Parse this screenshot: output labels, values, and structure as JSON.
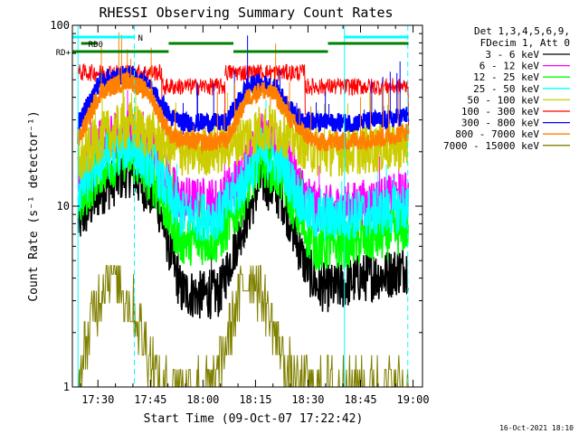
{
  "chart_data": {
    "type": "line",
    "title": "RHESSI Observing Summary Count Rates",
    "xlabel": "Start Time (09-Oct-07 17:22:42)",
    "ylabel": "Count Rate (s⁻¹ detector⁻¹)",
    "yscale": "log",
    "ylim": [
      1,
      100
    ],
    "xlim_minutes_from_start": [
      0,
      100
    ],
    "xticks": [
      {
        "label": "17:30",
        "minute": 7.3
      },
      {
        "label": "17:45",
        "minute": 22.3
      },
      {
        "label": "18:00",
        "minute": 37.3
      },
      {
        "label": "18:15",
        "minute": 52.3
      },
      {
        "label": "18:30",
        "minute": 67.3
      },
      {
        "label": "18:45",
        "minute": 82.3
      },
      {
        "label": "19:00",
        "minute": 97.3
      }
    ],
    "yticks": [
      {
        "label": "1",
        "value": 1
      },
      {
        "label": "10",
        "value": 10
      },
      {
        "label": "100",
        "value": 100
      }
    ],
    "legend": {
      "position": "right",
      "header": [
        "Det 1,3,4,5,6,9,",
        "FDecim 1, Att 0"
      ]
    },
    "series": [
      {
        "name": "3 - 6 keV",
        "color": "#000000",
        "mode": "solar",
        "points": [
          [
            1.6,
            8.0
          ],
          [
            8,
            12
          ],
          [
            16,
            15.5
          ],
          [
            24,
            11
          ],
          [
            28,
            5.6
          ],
          [
            31,
            3.4
          ],
          [
            36,
            3.2
          ],
          [
            42,
            3.3
          ],
          [
            47,
            6.4
          ],
          [
            54,
            14
          ],
          [
            60,
            11
          ],
          [
            66,
            5
          ],
          [
            70,
            3.6
          ],
          [
            75,
            3.5
          ],
          [
            82,
            4.0
          ],
          [
            90,
            4.2
          ],
          [
            96,
            4.6
          ]
        ]
      },
      {
        "name": "6 - 12 keV",
        "color": "#ff00ff",
        "mode": "solar",
        "points": [
          [
            1.6,
            14
          ],
          [
            8,
            22
          ],
          [
            16,
            26
          ],
          [
            24,
            19
          ],
          [
            28,
            13
          ],
          [
            31,
            10.8
          ],
          [
            36,
            10.5
          ],
          [
            42,
            10.6
          ],
          [
            47,
            14
          ],
          [
            54,
            24
          ],
          [
            60,
            20
          ],
          [
            66,
            12
          ],
          [
            70,
            9.5
          ],
          [
            75,
            9.6
          ],
          [
            82,
            10.2
          ],
          [
            90,
            10.8
          ],
          [
            96,
            11.5
          ]
        ]
      },
      {
        "name": "12 - 25 keV",
        "color": "#00ff00",
        "mode": "solar",
        "points": [
          [
            1.6,
            10
          ],
          [
            8,
            16
          ],
          [
            16,
            19
          ],
          [
            24,
            13
          ],
          [
            28,
            8.2
          ],
          [
            31,
            6.5
          ],
          [
            36,
            6.4
          ],
          [
            42,
            6.6
          ],
          [
            47,
            9.5
          ],
          [
            54,
            18
          ],
          [
            60,
            14
          ],
          [
            66,
            7.5
          ],
          [
            70,
            5.9
          ],
          [
            75,
            6.0
          ],
          [
            82,
            6.4
          ],
          [
            90,
            6.9
          ],
          [
            96,
            7.6
          ]
        ]
      },
      {
        "name": "25 - 50 keV",
        "color": "#00ffff",
        "mode": "solar",
        "points": [
          [
            1.6,
            12
          ],
          [
            8,
            18
          ],
          [
            16,
            22
          ],
          [
            24,
            16
          ],
          [
            28,
            11
          ],
          [
            31,
            9.0
          ],
          [
            36,
            8.8
          ],
          [
            42,
            8.9
          ],
          [
            47,
            12
          ],
          [
            54,
            20
          ],
          [
            60,
            17
          ],
          [
            66,
            10
          ],
          [
            70,
            8.6
          ],
          [
            75,
            8.7
          ],
          [
            82,
            9.0
          ],
          [
            90,
            9.4
          ],
          [
            96,
            10
          ]
        ]
      },
      {
        "name": "50 - 100 keV",
        "color": "#cccc00",
        "mode": "solar",
        "points": [
          [
            1.6,
            17
          ],
          [
            8,
            24
          ],
          [
            16,
            28
          ],
          [
            24,
            24
          ],
          [
            28,
            21
          ],
          [
            31,
            20
          ],
          [
            36,
            20
          ],
          [
            42,
            20.5
          ],
          [
            47,
            23
          ],
          [
            54,
            27
          ],
          [
            60,
            26
          ],
          [
            66,
            22
          ],
          [
            70,
            20
          ],
          [
            75,
            20
          ],
          [
            82,
            20.5
          ],
          [
            90,
            21
          ],
          [
            96,
            22
          ]
        ]
      },
      {
        "name": "100 - 300 keV",
        "color": "#ff0000",
        "mode": "flat",
        "segments": [
          {
            "x0": 1.6,
            "x1": 25.6,
            "y": 55
          },
          {
            "x0": 25.6,
            "x1": 43.6,
            "y": 46
          },
          {
            "x0": 43.6,
            "x1": 66.5,
            "y": 55
          },
          {
            "x0": 66.5,
            "x1": 96,
            "y": 46
          }
        ]
      },
      {
        "name": "300 - 800 keV",
        "color": "#0000ff",
        "mode": "orbit",
        "points": [
          [
            1.6,
            28
          ],
          [
            8,
            50
          ],
          [
            16,
            54
          ],
          [
            22,
            46
          ],
          [
            28,
            31
          ],
          [
            32,
            29
          ],
          [
            38,
            29
          ],
          [
            44,
            29
          ],
          [
            50,
            46
          ],
          [
            54,
            48
          ],
          [
            58,
            45
          ],
          [
            64,
            31
          ],
          [
            70,
            29
          ],
          [
            80,
            29
          ],
          [
            90,
            30
          ],
          [
            96,
            32
          ]
        ]
      },
      {
        "name": "800 - 7000 keV",
        "color": "#ff8000",
        "mode": "orbit",
        "points": [
          [
            1.6,
            23
          ],
          [
            8,
            43
          ],
          [
            16,
            50
          ],
          [
            22,
            42
          ],
          [
            28,
            25
          ],
          [
            32,
            23
          ],
          [
            38,
            22.5
          ],
          [
            44,
            23
          ],
          [
            50,
            40
          ],
          [
            54,
            44
          ],
          [
            58,
            41
          ],
          [
            64,
            27
          ],
          [
            70,
            22.5
          ],
          [
            80,
            23
          ],
          [
            90,
            24
          ],
          [
            96,
            26
          ]
        ]
      },
      {
        "name": "7000 - 15000 keV",
        "color": "#808000",
        "mode": "step",
        "points": [
          [
            1.6,
            1.0
          ],
          [
            4,
            1.7
          ],
          [
            6,
            2.6
          ],
          [
            8,
            3.4
          ],
          [
            10,
            4.5
          ],
          [
            13,
            4.0
          ],
          [
            16,
            3.1
          ],
          [
            19,
            2.3
          ],
          [
            22,
            1.5
          ],
          [
            25,
            1.0
          ],
          [
            40,
            1.0
          ],
          [
            43,
            1.5
          ],
          [
            46,
            2.5
          ],
          [
            49,
            3.8
          ],
          [
            52,
            4.2
          ],
          [
            55,
            3.0
          ],
          [
            58,
            2.0
          ],
          [
            61,
            1.3
          ],
          [
            64,
            1.0
          ],
          [
            96,
            1.0
          ]
        ]
      }
    ],
    "annotations": {
      "bars": [
        {
          "label": "N",
          "color": "#00ffff",
          "row": 0,
          "ranges": [
            [
              0,
              17.7
            ],
            [
              77.7,
              96
            ]
          ]
        },
        {
          "label": "RD0",
          "color": "#008000",
          "row": 1,
          "ranges": [
            [
              2.5,
              7
            ]
          ]
        },
        {
          "label": "RD+",
          "color": "#008000",
          "row": 2,
          "ranges": [
            [
              0,
              27.5
            ],
            [
              46,
              73
            ]
          ]
        },
        {
          "label": "",
          "color": "#008000",
          "row": 1,
          "ranges": [
            [
              27.5,
              46
            ],
            [
              73,
              96
            ]
          ]
        }
      ],
      "solid_vlines": [
        {
          "minute": 1.6,
          "color": "#00ffff"
        },
        {
          "minute": 77.7,
          "color": "#00ffff"
        }
      ],
      "dashed_vlines": [
        {
          "minute": 17.7,
          "color": "#00ffff"
        },
        {
          "minute": 95.8,
          "color": "#00ffff"
        }
      ]
    }
  },
  "footer": {
    "timestamp": "16-Oct-2021 18:10"
  }
}
